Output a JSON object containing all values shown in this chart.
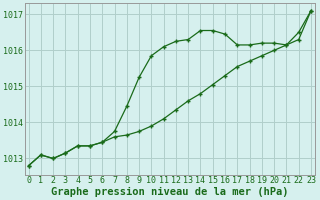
{
  "x": [
    0,
    1,
    2,
    3,
    4,
    5,
    6,
    7,
    8,
    9,
    10,
    11,
    12,
    13,
    14,
    15,
    16,
    17,
    18,
    19,
    20,
    21,
    22,
    23
  ],
  "line1": [
    1012.8,
    1013.1,
    1013.0,
    1013.15,
    1013.35,
    1013.35,
    1013.45,
    1013.75,
    1014.45,
    1015.25,
    1015.85,
    1016.1,
    1016.25,
    1016.3,
    1016.55,
    1016.55,
    1016.45,
    1016.15,
    1016.15,
    1016.2,
    1016.2,
    1016.15,
    1016.5,
    1017.1
  ],
  "line2": [
    1012.8,
    1013.1,
    1013.0,
    1013.15,
    1013.35,
    1013.35,
    1013.45,
    1013.6,
    1013.65,
    1013.75,
    1013.9,
    1014.1,
    1014.35,
    1014.6,
    1014.8,
    1015.05,
    1015.3,
    1015.55,
    1015.7,
    1015.85,
    1016.0,
    1016.15,
    1016.3,
    1017.1
  ],
  "line_color": "#1a6b1a",
  "bg_color": "#d6f0ee",
  "grid_color": "#b0ceca",
  "ylabel_values": [
    1013,
    1014,
    1015,
    1016,
    1017
  ],
  "xlabel_values": [
    0,
    1,
    2,
    3,
    4,
    5,
    6,
    7,
    8,
    9,
    10,
    11,
    12,
    13,
    14,
    15,
    16,
    17,
    18,
    19,
    20,
    21,
    22,
    23
  ],
  "xlabel": "Graphe pression niveau de la mer (hPa)",
  "ylim": [
    1012.55,
    1017.3
  ],
  "xlim": [
    -0.3,
    23.3
  ],
  "tick_fontsize": 6.0,
  "xlabel_fontsize": 7.5
}
